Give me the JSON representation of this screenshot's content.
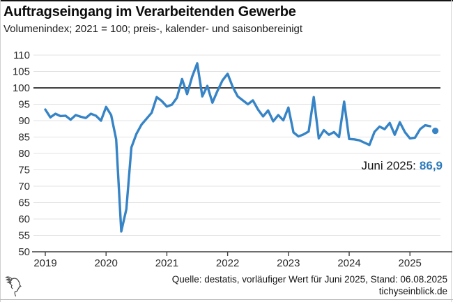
{
  "header": {
    "title": "Auftragseingang im Verarbeitenden Gewerbe",
    "subtitle": "Volumenindex; 2021 = 100; preis-, kalender- und saisonbereinigt"
  },
  "annotation": {
    "label": "Juni 2025:",
    "value": "86,9"
  },
  "footer": {
    "source": "Quelle: destatis, vorläufiger Wert für Juni 2025, Stand: 06.08.2025",
    "site": "tichyseinblick.de",
    "logo_icon": "hermes-head-logo"
  },
  "colors": {
    "line": "#3684c6",
    "annotation_value": "#2b7bbc",
    "grid": "#e3e3e3",
    "reference_line": "#3f3f3f",
    "axis": "#3f3f3f",
    "text": "#1a1a1a"
  },
  "chart_data": {
    "type": "line",
    "title": "Auftragseingang im Verarbeitenden Gewerbe",
    "subtitle": "Volumenindex; 2021 = 100; preis-, kalender- und saisonbereinigt",
    "xlabel": "",
    "ylabel": "",
    "ylim": [
      50,
      110
    ],
    "y_ticks": [
      50,
      55,
      60,
      65,
      70,
      75,
      80,
      85,
      90,
      95,
      100,
      105,
      110
    ],
    "x_tick_labels": [
      "2019",
      "2020",
      "2021",
      "2022",
      "2023",
      "2024",
      "2025"
    ],
    "reference_line": 100,
    "grid": "horizontal",
    "legend": "none",
    "series": [
      {
        "name": "Auftragseingang Volumenindex (saisonbereinigt)",
        "frequency": "monthly",
        "start": "2019-01",
        "end": "2025-06",
        "values": [
          93.4,
          91.0,
          92.1,
          91.4,
          91.5,
          90.3,
          91.7,
          91.2,
          90.8,
          92.1,
          91.5,
          90.0,
          94.2,
          91.7,
          84.3,
          56.2,
          63.0,
          81.8,
          86.0,
          88.8,
          90.6,
          92.4,
          97.2,
          96.0,
          94.3,
          94.9,
          97.0,
          102.7,
          98.1,
          103.4,
          107.5,
          97.4,
          100.6,
          95.5,
          99.1,
          102.3,
          104.3,
          100.3,
          97.4,
          96.2,
          95.0,
          96.2,
          93.4,
          91.3,
          93.1,
          89.8,
          91.7,
          90.1,
          94.0,
          86.4,
          85.2,
          85.8,
          86.7,
          97.2,
          84.6,
          87.1,
          85.7,
          86.5,
          85.0,
          95.8,
          84.4,
          84.3,
          84.0,
          83.3,
          82.6,
          86.6,
          88.2,
          87.4,
          89.3,
          85.7,
          89.5,
          86.5,
          84.6,
          84.8,
          87.4,
          88.6,
          88.3,
          86.9
        ]
      }
    ],
    "last_point": {
      "label": "Juni 2025",
      "value": 86.9,
      "value_display": "86,9",
      "marker": "dot"
    }
  }
}
